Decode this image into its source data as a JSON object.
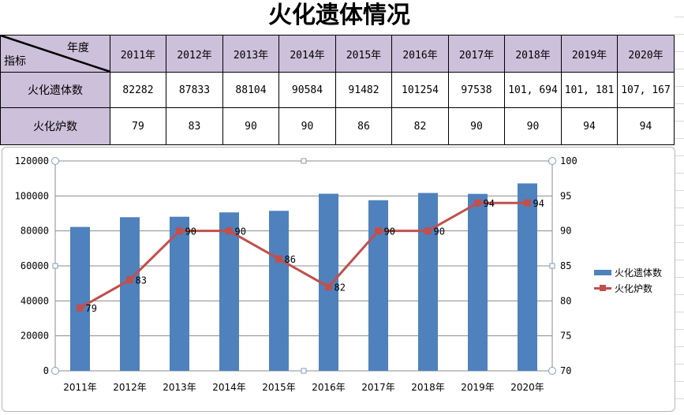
{
  "title": "火化遗体情况",
  "table": {
    "corner_top": "年度",
    "corner_bottom": "指标",
    "years": [
      "2011年",
      "2012年",
      "2013年",
      "2014年",
      "2015年",
      "2016年",
      "2017年",
      "2018年",
      "2019年",
      "2020年"
    ],
    "rows": [
      {
        "label": "火化遗体数",
        "values": [
          "82282",
          "87833",
          "88104",
          "90584",
          "91482",
          "101254",
          "97538",
          "101, 694",
          "101, 181",
          "107, 167"
        ]
      },
      {
        "label": "火化炉数",
        "values": [
          "79",
          "83",
          "90",
          "90",
          "86",
          "82",
          "90",
          "90",
          "94",
          "94"
        ]
      }
    ]
  },
  "chart_data": {
    "type": "bar+line",
    "categories": [
      "2011年",
      "2012年",
      "2013年",
      "2014年",
      "2015年",
      "2016年",
      "2017年",
      "2018年",
      "2019年",
      "2020年"
    ],
    "series": [
      {
        "name": "火化遗体数",
        "type": "bar",
        "axis": "left",
        "color": "#4f81bd",
        "values": [
          82282,
          87833,
          88104,
          90584,
          91482,
          101254,
          97538,
          101694,
          101181,
          107167
        ]
      },
      {
        "name": "火化炉数",
        "type": "line",
        "axis": "right",
        "color": "#c0504d",
        "values": [
          79,
          83,
          90,
          90,
          86,
          82,
          90,
          90,
          94,
          94
        ]
      }
    ],
    "y_left": {
      "min": 0,
      "max": 120000,
      "ticks": [
        "0",
        "20000",
        "40000",
        "60000",
        "80000",
        "100000",
        "120000"
      ]
    },
    "y_right": {
      "min": 70,
      "max": 100,
      "ticks": [
        "70",
        "75",
        "80",
        "85",
        "90",
        "95",
        "100"
      ]
    },
    "line_labels": [
      "79",
      "83",
      "90",
      "90",
      "86",
      "82",
      "90",
      "90",
      "94",
      "94"
    ],
    "grid": true,
    "legend": "right"
  }
}
